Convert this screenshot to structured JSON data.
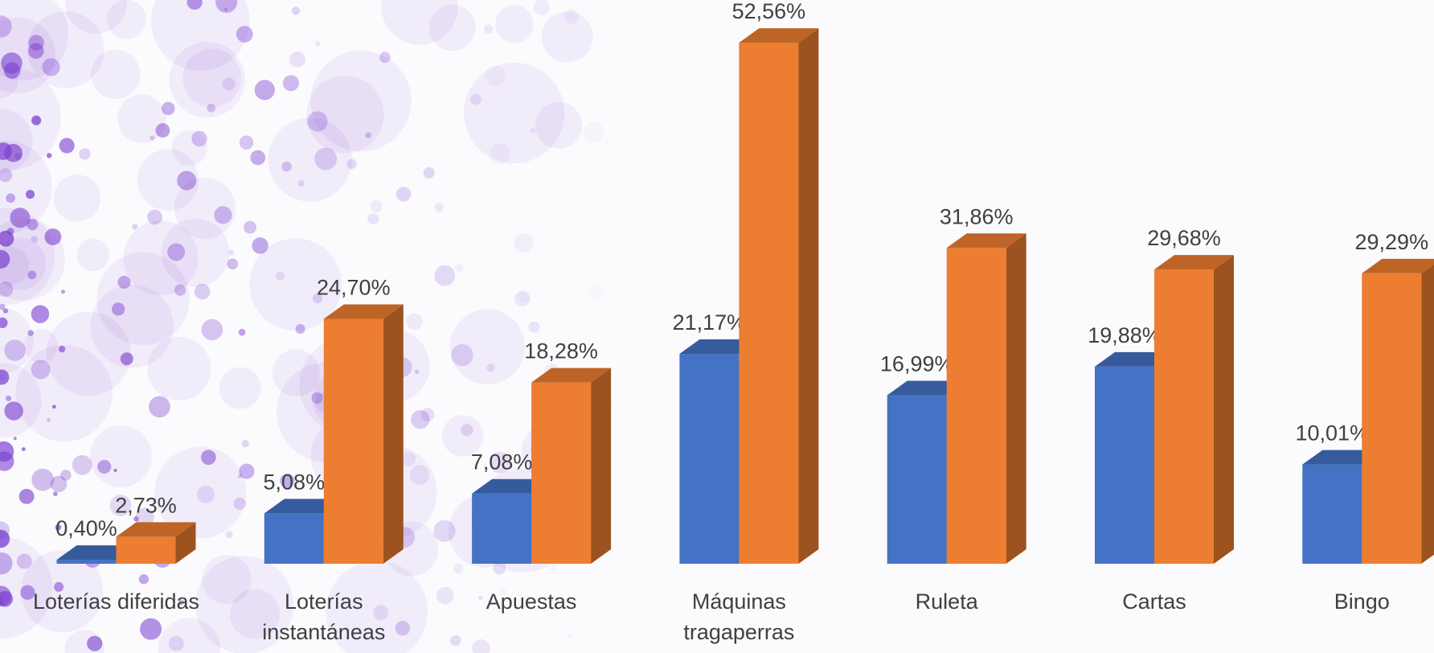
{
  "chart_data": {
    "type": "bar",
    "categories": [
      "Loterías diferidas",
      "Loterías instantáneas",
      "Apuestas",
      "Máquinas tragaperras",
      "Ruleta",
      "Cartas",
      "Bingo"
    ],
    "series": [
      {
        "color": "#4472c4",
        "values": [
          0.4,
          5.08,
          7.08,
          21.17,
          16.99,
          19.88,
          10.01
        ],
        "value_labels": [
          "0,40%",
          "5,08%",
          "7,08%",
          "21,17%",
          "16,99%",
          "19,88%",
          "10,01%"
        ]
      },
      {
        "color": "#ed7d31",
        "values": [
          2.73,
          24.7,
          18.28,
          52.56,
          31.86,
          29.68,
          29.29
        ],
        "value_labels": [
          "2,73%",
          "24,70%",
          "18,28%",
          "52,56%",
          "31,86%",
          "29,68%",
          "29,29%"
        ]
      }
    ],
    "ylim": [
      0,
      55
    ]
  }
}
